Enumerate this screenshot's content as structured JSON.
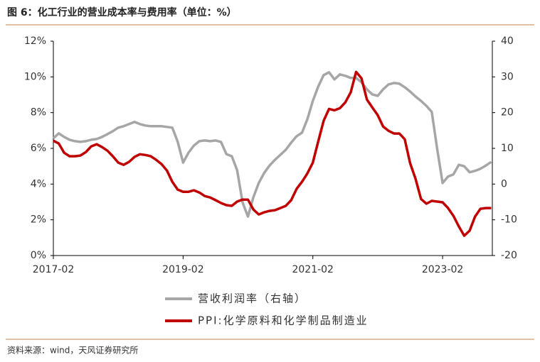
{
  "chart_data": {
    "type": "line",
    "title": "图 6：化工行业的营业成本率与费用率（单位：%）",
    "source": "资料来源：wind，天风证券研究所",
    "categories": [
      "2017-02",
      null,
      null,
      null,
      null,
      null,
      null,
      null,
      null,
      null,
      null,
      null,
      null,
      null,
      null,
      null,
      null,
      null,
      null,
      null,
      null,
      null,
      null,
      null,
      "2019-02",
      null,
      null,
      null,
      null,
      null,
      null,
      null,
      null,
      null,
      null,
      null,
      null,
      null,
      null,
      null,
      null,
      null,
      null,
      null,
      null,
      null,
      null,
      null,
      "2021-02",
      null,
      null,
      null,
      null,
      null,
      null,
      null,
      null,
      null,
      null,
      null,
      null,
      null,
      null,
      null,
      null,
      null,
      null,
      null,
      null,
      null,
      null,
      null,
      "2023-02",
      null,
      null,
      null,
      null,
      null,
      null,
      null,
      null,
      null
    ],
    "series": [
      {
        "name": "营收利润率（右轴）",
        "color": "#a6a6a6",
        "axis": "y2",
        "values": [
          12.8,
          14.2,
          13.2,
          12.4,
          12.0,
          11.8,
          12.0,
          12.4,
          12.6,
          13.2,
          14.0,
          14.8,
          15.8,
          16.2,
          16.8,
          17.4,
          16.8,
          16.4,
          16.2,
          16.2,
          16.2,
          16.0,
          15.8,
          11.8,
          6.0,
          8.8,
          10.8,
          12.0,
          12.2,
          12.0,
          12.2,
          11.8,
          8.4,
          7.8,
          3.9,
          -5.1,
          -9.1,
          -3.7,
          0.3,
          3.1,
          5.2,
          6.8,
          8.2,
          9.6,
          11.6,
          13.4,
          14.4,
          18.2,
          23.3,
          27.3,
          30.5,
          31.3,
          29.3,
          30.7,
          30.3,
          29.7,
          29.7,
          28.5,
          26.5,
          25.1,
          24.7,
          26.5,
          27.9,
          28.3,
          28.1,
          27.1,
          25.9,
          24.5,
          23.3,
          21.9,
          20.2,
          9.8,
          0.3,
          2.1,
          2.7,
          5.4,
          5.0,
          3.3,
          3.7,
          4.3,
          5.2,
          6.2
        ]
      },
      {
        "name": "PPI:化学原料和化学制品制造业",
        "color": "#c00000",
        "axis": "y",
        "values": [
          6.43,
          6.27,
          5.75,
          5.56,
          5.56,
          5.6,
          5.79,
          6.11,
          6.23,
          6.07,
          5.87,
          5.56,
          5.2,
          5.08,
          5.24,
          5.52,
          5.67,
          5.63,
          5.56,
          5.36,
          5.12,
          4.76,
          4.13,
          3.69,
          3.57,
          3.57,
          3.65,
          3.53,
          3.33,
          3.25,
          3.1,
          2.94,
          2.82,
          2.78,
          3.02,
          3.13,
          3.13,
          2.58,
          2.3,
          2.42,
          2.5,
          2.54,
          2.66,
          2.78,
          3.1,
          3.73,
          4.13,
          4.6,
          5.2,
          6.39,
          7.54,
          8.21,
          8.13,
          8.25,
          8.57,
          9.13,
          10.28,
          9.92,
          8.73,
          8.29,
          7.86,
          7.22,
          6.98,
          6.83,
          6.83,
          6.51,
          5.16,
          4.29,
          3.17,
          2.9,
          3.06,
          3.02,
          2.98,
          2.66,
          2.22,
          1.63,
          1.11,
          1.39,
          2.18,
          2.62,
          2.66,
          2.66
        ]
      }
    ],
    "ylim": [
      0,
      12
    ],
    "yticks": [
      {
        "value": 0,
        "label": "0%"
      },
      {
        "value": 2,
        "label": "2%"
      },
      {
        "value": 4,
        "label": "4%"
      },
      {
        "value": 6,
        "label": "6%"
      },
      {
        "value": 8,
        "label": "8%"
      },
      {
        "value": 10,
        "label": "10%"
      },
      {
        "value": 12,
        "label": "12%"
      }
    ],
    "y2lim": [
      -20,
      40
    ],
    "y2ticks": [
      -20,
      -10,
      0,
      10,
      20,
      30,
      40
    ],
    "grid": false,
    "legend": "bottom"
  }
}
